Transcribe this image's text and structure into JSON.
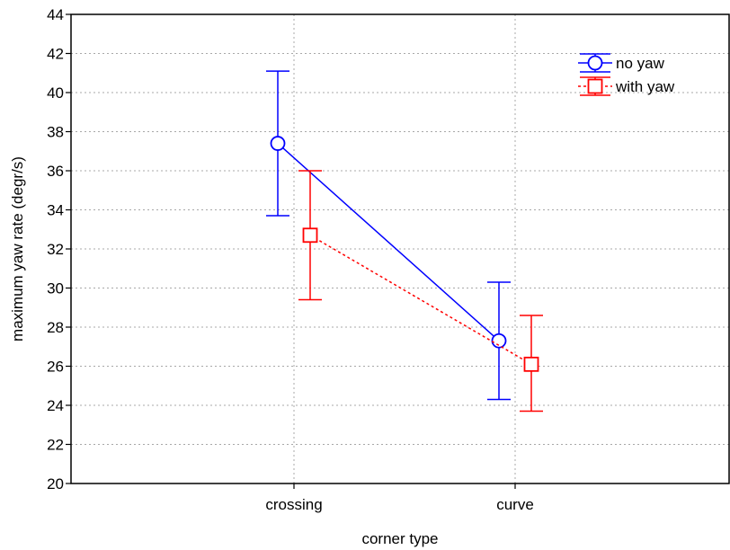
{
  "chart_data": {
    "type": "line",
    "title": "",
    "xlabel": "corner type",
    "ylabel": "maximum yaw rate (degr/s)",
    "categories": [
      "crossing",
      "curve"
    ],
    "ylim": [
      20,
      44
    ],
    "yticks": [
      20,
      22,
      24,
      26,
      28,
      30,
      32,
      34,
      36,
      38,
      40,
      42,
      44
    ],
    "grid": true,
    "legend_position": "top-right",
    "series": [
      {
        "name": "no yaw",
        "color": "#0000ff",
        "marker": "circle",
        "line_style": "solid",
        "values": [
          37.4,
          27.3
        ],
        "error_low": [
          33.7,
          24.3
        ],
        "error_high": [
          41.1,
          30.3
        ]
      },
      {
        "name": "with yaw",
        "color": "#ff0000",
        "marker": "square",
        "line_style": "dotted",
        "values": [
          32.7,
          26.1
        ],
        "error_low": [
          29.4,
          23.7
        ],
        "error_high": [
          36.0,
          28.6
        ]
      }
    ]
  }
}
